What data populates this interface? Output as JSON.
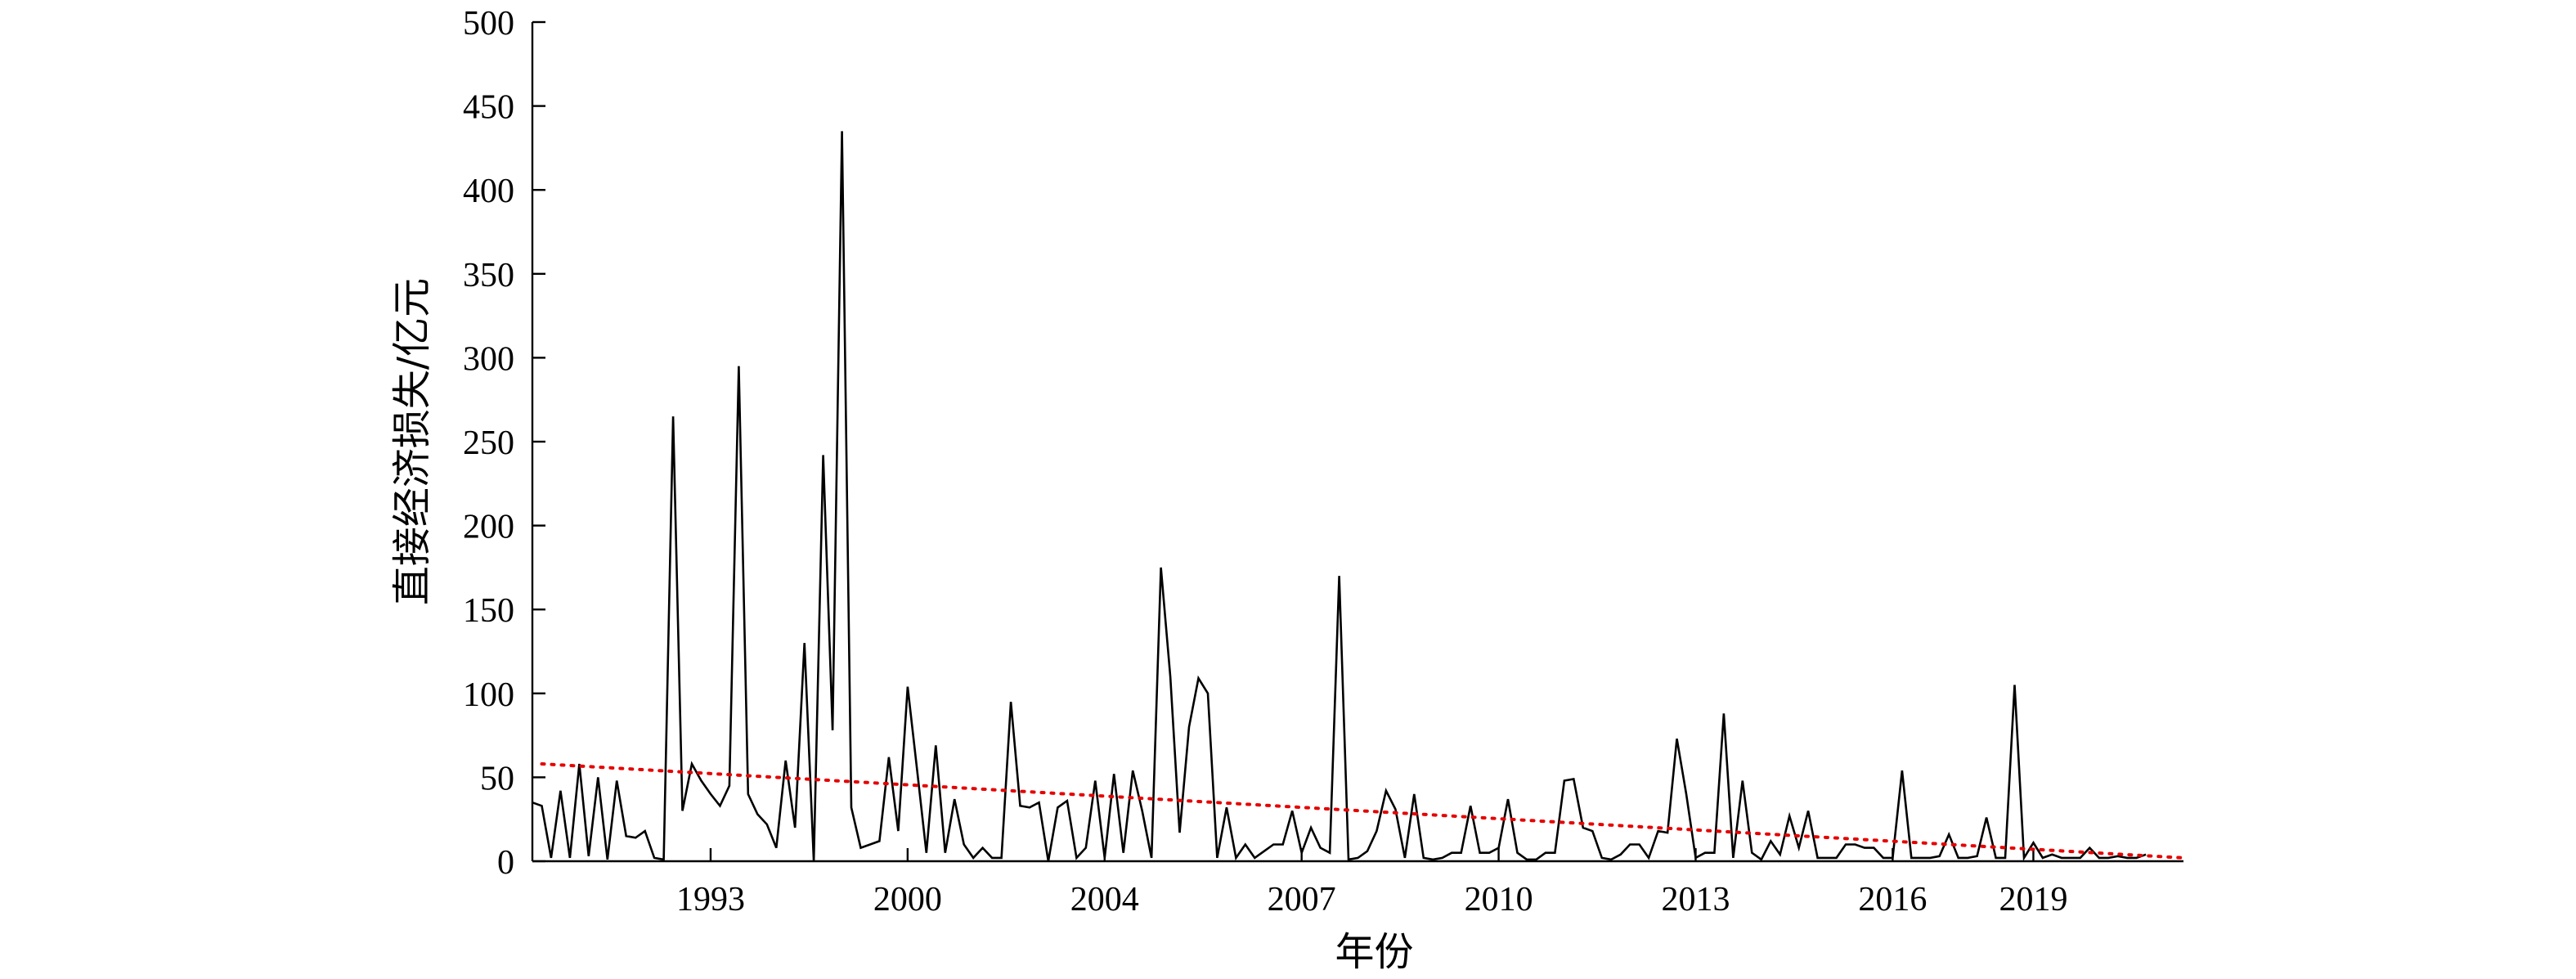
{
  "chart_data": {
    "type": "line",
    "xlabel": "年份",
    "ylabel": "直接经济损失/亿元",
    "ylim": [
      0,
      500
    ],
    "yticks": [
      0,
      50,
      100,
      150,
      200,
      250,
      300,
      350,
      400,
      450,
      500
    ],
    "xlim": [
      0,
      176
    ],
    "xtick_labels": [
      {
        "label": "1993",
        "index": 19
      },
      {
        "label": "2000",
        "index": 40
      },
      {
        "label": "2004",
        "index": 61
      },
      {
        "label": "2007",
        "index": 82
      },
      {
        "label": "2010",
        "index": 103
      },
      {
        "label": "2013",
        "index": 124
      },
      {
        "label": "2016",
        "index": 145
      },
      {
        "label": "2019",
        "index": 160
      }
    ],
    "series": [
      {
        "style": "solid",
        "color": "#000000",
        "values": [
          35,
          33,
          2,
          42,
          2,
          58,
          3,
          50,
          1,
          48,
          15,
          14,
          18,
          2,
          1,
          265,
          30,
          58,
          48,
          40,
          33,
          45,
          295,
          40,
          28,
          22,
          8,
          60,
          20,
          130,
          0,
          242,
          78,
          435,
          32,
          8,
          10,
          12,
          62,
          18,
          104,
          55,
          5,
          69,
          5,
          37,
          10,
          2,
          8,
          2,
          2,
          95,
          33,
          32,
          35,
          0,
          32,
          36,
          2,
          8,
          48,
          2,
          52,
          5,
          54,
          30,
          2,
          175,
          110,
          17,
          80,
          109,
          100,
          2,
          32,
          2,
          10,
          2,
          6,
          10,
          10,
          30,
          5,
          20,
          8,
          5,
          170,
          1,
          2,
          6,
          18,
          42,
          31,
          2,
          40,
          2,
          1,
          2,
          5,
          5,
          33,
          5,
          5,
          8,
          37,
          5,
          1,
          1,
          5,
          5,
          48,
          49,
          20,
          18,
          2,
          1,
          4,
          10,
          10,
          2,
          18,
          17,
          73,
          40,
          2,
          5,
          5,
          88,
          2,
          48,
          5,
          1,
          12,
          4,
          27,
          8,
          30,
          2,
          2,
          2,
          10,
          10,
          8,
          8,
          2,
          2,
          54,
          2,
          2,
          2,
          3,
          16,
          2,
          2,
          3,
          26,
          2,
          2,
          105,
          2,
          11,
          2,
          4,
          2,
          2,
          2,
          8,
          2,
          2,
          3,
          2,
          2,
          4
        ]
      },
      {
        "style": "dotted",
        "color": "#e60000",
        "trend": true,
        "x": [
          1,
          176
        ],
        "values": [
          58,
          2
        ]
      }
    ]
  }
}
